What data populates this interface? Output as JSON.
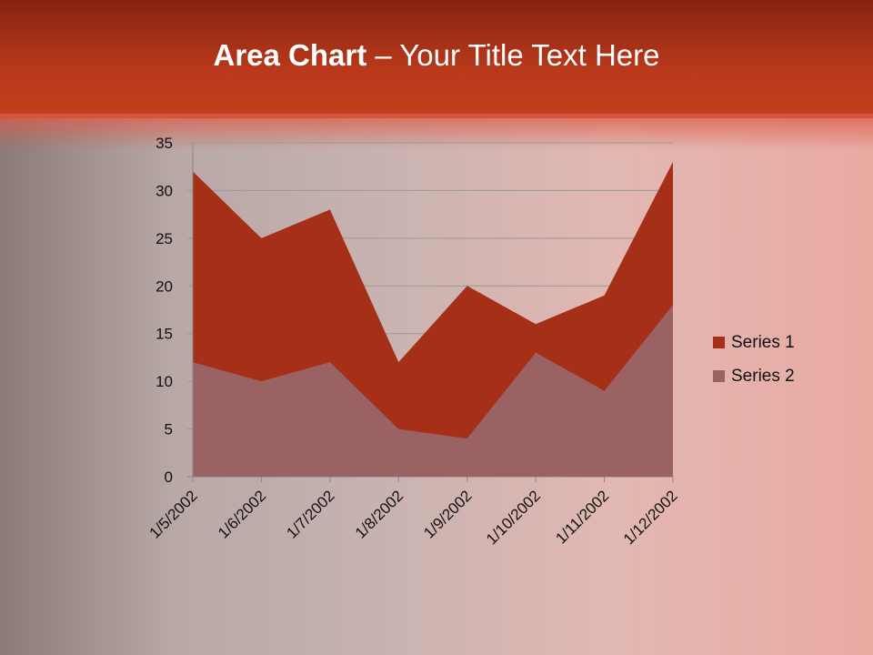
{
  "title": {
    "bold": "Area Chart",
    "rest": " – Your Title Text Here"
  },
  "chart_data": {
    "type": "area",
    "categories": [
      "1/5/2002",
      "1/6/2002",
      "1/7/2002",
      "1/8/2002",
      "1/9/2002",
      "1/10/2002",
      "1/11/2002",
      "1/12/2002"
    ],
    "series": [
      {
        "name": "Series 1",
        "values": [
          32,
          25,
          28,
          12,
          20,
          16,
          19,
          33
        ],
        "color": "#a52f17"
      },
      {
        "name": "Series 2",
        "values": [
          12,
          10,
          12,
          5,
          4,
          13,
          9,
          18
        ],
        "color": "#9a6262"
      }
    ],
    "ylim": [
      0,
      35
    ],
    "yticks": [
      0,
      5,
      10,
      15,
      20,
      25,
      30,
      35
    ],
    "grid": true,
    "legend": "right"
  }
}
